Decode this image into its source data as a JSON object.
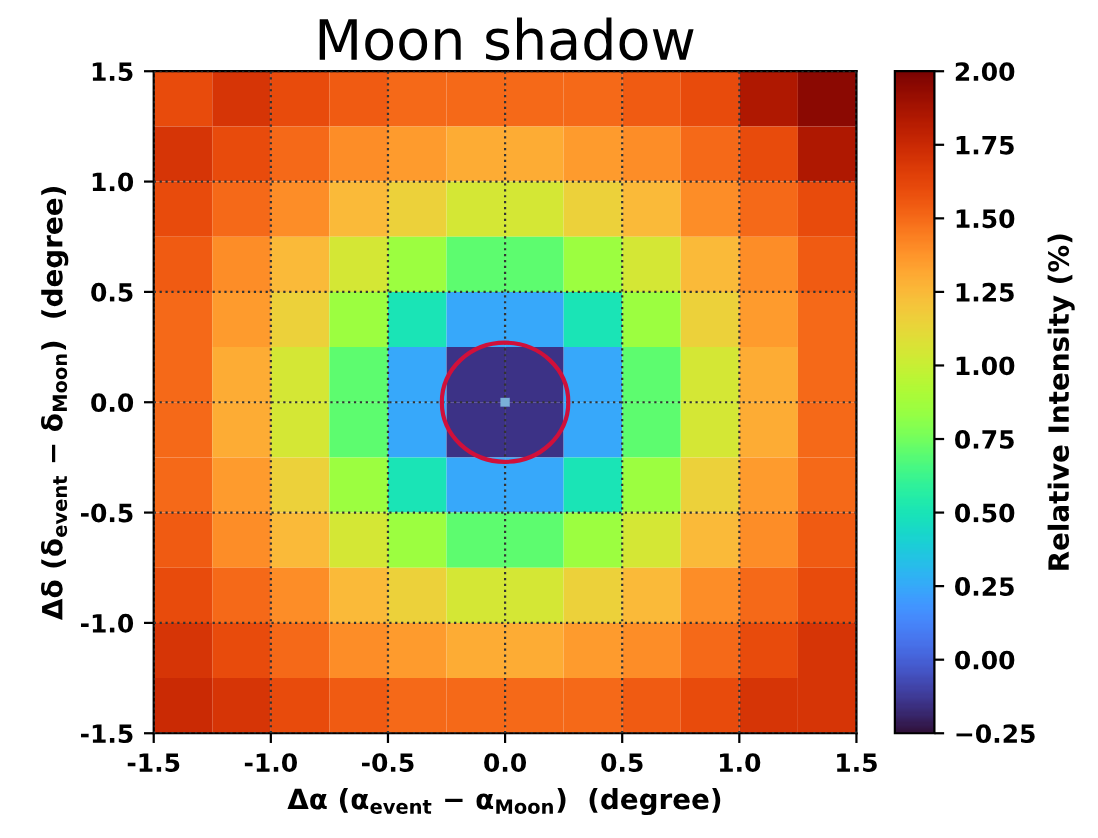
{
  "chart_data": {
    "type": "heatmap",
    "title": "Moon shadow",
    "xlabel": "Δα (α$_{event}$ − α$_{Moon}$)  (degree)",
    "ylabel": "Δδ (δ$_{event}$ − δ$_{Moon}$)  (degree)",
    "clabel": "Relative Intensity (%)",
    "cells": [
      [
        1.6,
        1.7,
        1.6,
        1.55,
        1.5,
        1.5,
        1.5,
        1.5,
        1.55,
        1.6,
        1.85,
        1.95
      ],
      [
        1.7,
        1.6,
        1.5,
        1.4,
        1.35,
        1.3,
        1.3,
        1.35,
        1.4,
        1.5,
        1.6,
        1.85
      ],
      [
        1.6,
        1.5,
        1.4,
        1.25,
        1.15,
        1.05,
        1.05,
        1.15,
        1.25,
        1.4,
        1.5,
        1.6
      ],
      [
        1.55,
        1.4,
        1.25,
        1.05,
        0.85,
        0.7,
        0.7,
        0.85,
        1.05,
        1.25,
        1.4,
        1.55
      ],
      [
        1.5,
        1.35,
        1.15,
        0.85,
        0.5,
        0.25,
        0.25,
        0.5,
        0.85,
        1.15,
        1.35,
        1.5
      ],
      [
        1.5,
        1.3,
        1.05,
        0.7,
        0.25,
        -0.15,
        -0.15,
        0.25,
        0.7,
        1.05,
        1.3,
        1.5
      ],
      [
        1.5,
        1.3,
        1.05,
        0.7,
        0.25,
        -0.15,
        -0.15,
        0.25,
        0.7,
        1.05,
        1.3,
        1.5
      ],
      [
        1.5,
        1.35,
        1.15,
        0.85,
        0.5,
        0.25,
        0.25,
        0.5,
        0.85,
        1.15,
        1.35,
        1.5
      ],
      [
        1.55,
        1.4,
        1.25,
        1.05,
        0.85,
        0.7,
        0.7,
        0.85,
        1.05,
        1.25,
        1.4,
        1.55
      ],
      [
        1.6,
        1.5,
        1.4,
        1.25,
        1.15,
        1.05,
        1.05,
        1.15,
        1.25,
        1.4,
        1.5,
        1.6
      ],
      [
        1.7,
        1.6,
        1.5,
        1.4,
        1.35,
        1.3,
        1.3,
        1.35,
        1.4,
        1.5,
        1.6,
        1.7
      ],
      [
        1.75,
        1.7,
        1.6,
        1.55,
        1.5,
        1.5,
        1.5,
        1.5,
        1.55,
        1.6,
        1.7,
        1.7
      ]
    ],
    "xlim": [
      -1.5,
      1.5
    ],
    "xticks": [
      -1.5,
      {
        "value": -1,
        "label": "-1.0"
      },
      -0.5,
      {
        "value": 0,
        "label": "0.0"
      },
      0.5,
      {
        "value": 1,
        "label": "1.0"
      },
      1.5
    ],
    "ylim": [
      -1.5,
      1.5
    ],
    "yticks": [
      -1.5,
      {
        "value": -1,
        "label": "-1.0"
      },
      -0.5,
      {
        "value": 0,
        "label": "0.0"
      },
      0.5,
      {
        "value": 1,
        "label": "1.0"
      },
      1.5
    ],
    "clim": [
      -0.25,
      2.0
    ],
    "cticks": [
      {
        "value": -0.25,
        "label": "−0.25"
      },
      {
        "value": 0.0,
        "label": "0.00"
      },
      {
        "value": 0.25,
        "label": "0.25"
      },
      {
        "value": 0.5,
        "label": "0.50"
      },
      {
        "value": 0.75,
        "label": "0.75"
      },
      {
        "value": 1.0,
        "label": "1.00"
      },
      {
        "value": 1.25,
        "label": "1.25"
      },
      {
        "value": 1.5,
        "label": "1.50"
      },
      {
        "value": 1.75,
        "label": "1.75"
      },
      {
        "value": 2.0,
        "label": "2.00"
      }
    ],
    "grid": true
  }
}
